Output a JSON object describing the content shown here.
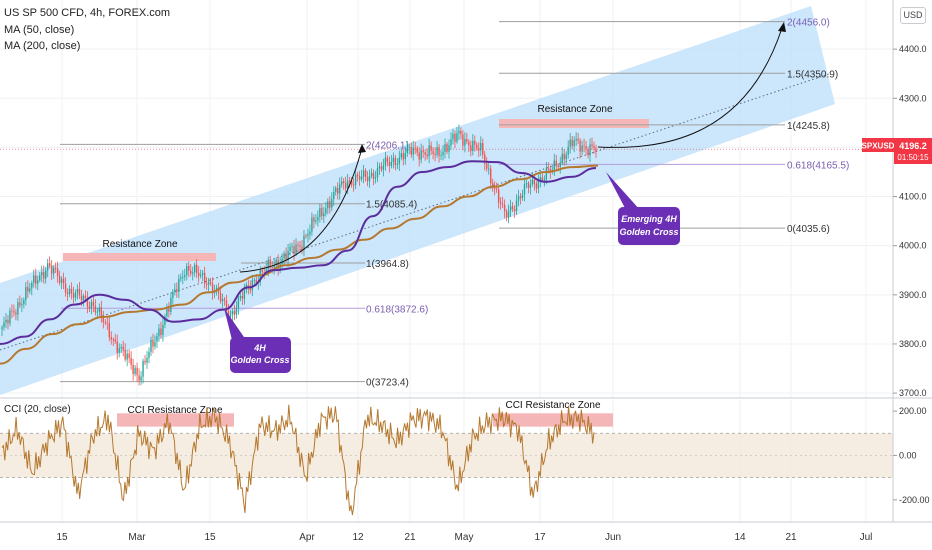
{
  "header": {
    "title": "US SP 500 CFD, 4h, FOREX.com",
    "ma50": "MA (50, close)",
    "ma200": "MA (200, close)",
    "cci_label": "CCI (20, close)"
  },
  "currency_button": "USD",
  "price_badge": {
    "symbol": "SPXUSD",
    "price": "4196.2",
    "countdown": "01:50:15"
  },
  "colors": {
    "channel_fill": "#bfe0fb",
    "ma50": "#5b2d9c",
    "ma200": "#b5782f",
    "cci": "#b5782f",
    "resistance_zone": "#f4b6b6",
    "price_up": "#26a69a",
    "price_down": "#ef5350",
    "callout": "#6a2fb5",
    "badge": "#f23645"
  },
  "chart_data": [
    {
      "type": "line",
      "title": "US SP 500 CFD, 4h, FOREX.com",
      "yticks": [
        3700,
        3800,
        3900,
        4000,
        4100,
        4200,
        4300,
        4400
      ],
      "ylim": [
        3690,
        4500
      ],
      "xticks": [
        "15",
        "Mar",
        "15",
        "Apr",
        "12",
        "21",
        "May",
        "17",
        "Jun",
        "14",
        "21",
        "Jul"
      ],
      "current_price": 4196.2,
      "series": [
        {
          "name": "MA (50, close)",
          "values": [
            3800,
            3815,
            3850,
            3880,
            3900,
            3890,
            3870,
            3845,
            3850,
            3870,
            3915,
            3950,
            3955,
            3960,
            3990,
            4060,
            4120,
            4150,
            4160,
            4172,
            4170,
            4148,
            4130,
            4140,
            4158
          ]
        },
        {
          "name": "MA (200, close)",
          "values": [
            3760,
            3790,
            3820,
            3840,
            3855,
            3865,
            3870,
            3880,
            3905,
            3925,
            3940,
            3960,
            3975,
            3992,
            4012,
            4035,
            4055,
            4080,
            4100,
            4120,
            4135,
            4150,
            4160,
            4163
          ]
        }
      ],
      "price_path": [
        3830,
        3900,
        3960,
        3905,
        3880,
        3800,
        3735,
        3840,
        3955,
        3930,
        3860,
        3930,
        3965,
        4000,
        4070,
        4130,
        4140,
        4170,
        4195,
        4185,
        4225,
        4190,
        4060,
        4120,
        4150,
        4210,
        4195
      ],
      "fibonacci_lower": {
        "levels": [
          "0(3723.4)",
          "0.618(3872.6)",
          "1(3964.8)",
          "1.5(4085.4)",
          "2(4206.1)"
        ],
        "values": [
          3723.4,
          3872.6,
          3964.8,
          4085.4,
          4206.1
        ]
      },
      "fibonacci_upper": {
        "levels": [
          "0(4035.6)",
          "0.618(4165.5)",
          "1(4245.8)",
          "1.5(4350.9)",
          "2(4456.0)"
        ],
        "values": [
          4035.6,
          4165.5,
          4245.8,
          4350.9,
          4456.0
        ]
      },
      "annotations": {
        "resistance_zone": "Resistance Zone",
        "golden_cross_line1": "4H",
        "golden_cross_line2": "Golden Cross",
        "emerging_line1": "Emerging 4H",
        "emerging_line2": "Golden Cross"
      }
    },
    {
      "type": "line",
      "title": "CCI (20, close)",
      "yticks": [
        200,
        0,
        -200
      ],
      "ytick_labels": [
        "200.00",
        "0.00",
        "-200.00"
      ],
      "ylim": [
        -300,
        250
      ],
      "band": [
        -100,
        100
      ],
      "values": [
        10,
        120,
        -80,
        60,
        150,
        -180,
        90,
        170,
        -200,
        100,
        20,
        160,
        -160,
        130,
        180,
        60,
        -220,
        140,
        110,
        170,
        -100,
        160,
        190,
        -280,
        170,
        140,
        60,
        160,
        180,
        120,
        -150,
        80,
        150,
        170,
        120,
        -180,
        60,
        160,
        170,
        100
      ],
      "annotations": {
        "resistance_zone": "CCI Resistance Zone"
      }
    }
  ]
}
